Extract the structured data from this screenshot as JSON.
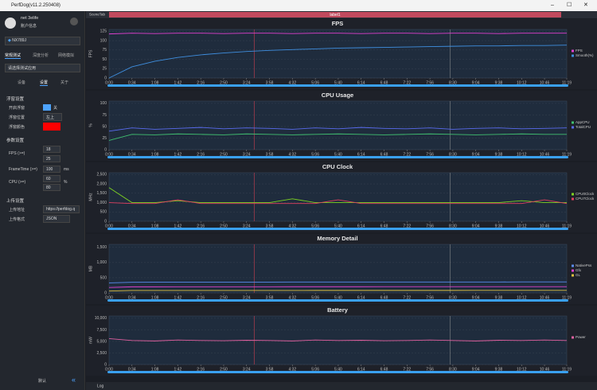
{
  "window": {
    "title": "PerfDog(v11.2.250408)",
    "scene_tab": "SceneTab",
    "label": "label1",
    "log": "Log"
  },
  "sidebar": {
    "user": "net 3elife",
    "account": "账户信息",
    "device": "NX789J",
    "tabs": [
      "常规测试",
      "深度分析",
      "网络模拟"
    ],
    "app_select": "请选择测试应用",
    "subtabs": [
      "设备",
      "设置",
      "关于"
    ],
    "float_title": "浮窗设置",
    "float_rows": [
      {
        "label": "开启浮窗",
        "value": "关"
      },
      {
        "label": "浮窗位置",
        "value": "左上"
      },
      {
        "label": "浮窗颜色"
      }
    ],
    "param_title": "参数设置",
    "params": [
      {
        "label": "FPS (>=)",
        "values": [
          18,
          25
        ]
      },
      {
        "label": "FrameTime (>=)",
        "values": [
          100
        ],
        "unit": "ms"
      },
      {
        "label": "CPU (>=)",
        "values": [
          60,
          80
        ],
        "unit": "%"
      }
    ],
    "upload_title": "上传设置",
    "upload_rows": [
      {
        "label": "上传地址",
        "value": "https://perfdog.q"
      },
      {
        "label": "上传格式",
        "value": "JSON"
      }
    ],
    "default_button": "默认"
  },
  "chart_data": [
    {
      "type": "line",
      "title": "FPS",
      "y_label": "FPS",
      "x": [
        0,
        34,
        68,
        102,
        136,
        170,
        204,
        238,
        272,
        306,
        340,
        374,
        408,
        442,
        476,
        510,
        544,
        578,
        612,
        646,
        679
      ],
      "xlim": [
        0,
        679
      ],
      "xticks": [
        {
          "value": 0,
          "label": "0:00"
        },
        {
          "value": 34,
          "label": "0:34"
        },
        {
          "value": 68,
          "label": "1:08"
        },
        {
          "value": 102,
          "label": "1:42"
        },
        {
          "value": 136,
          "label": "2:16"
        },
        {
          "value": 170,
          "label": "2:50"
        },
        {
          "value": 204,
          "label": "3:24"
        },
        {
          "value": 238,
          "label": "3:58"
        },
        {
          "value": 272,
          "label": "4:32"
        },
        {
          "value": 306,
          "label": "5:06"
        },
        {
          "value": 340,
          "label": "5:40"
        },
        {
          "value": 374,
          "label": "6:14"
        },
        {
          "value": 408,
          "label": "6:48"
        },
        {
          "value": 442,
          "label": "7:22"
        },
        {
          "value": 476,
          "label": "7:56"
        },
        {
          "value": 510,
          "label": "8:30"
        },
        {
          "value": 544,
          "label": "9:04"
        },
        {
          "value": 578,
          "label": "9:38"
        },
        {
          "value": 612,
          "label": "10:12"
        },
        {
          "value": 646,
          "label": "10:46"
        },
        {
          "value": 679,
          "label": "11:19"
        }
      ],
      "ylim": [
        0,
        130
      ],
      "yticks": [
        0,
        25,
        50,
        75,
        100,
        125
      ],
      "series": [
        {
          "name": "FPS",
          "color": "#e040d0",
          "values": [
            118,
            120,
            119,
            120,
            120,
            119,
            120,
            120,
            119,
            120,
            120,
            119,
            120,
            120,
            119,
            120,
            120,
            119,
            120,
            120,
            120
          ]
        },
        {
          "name": "Smooth(%)",
          "color": "#3f8fe0",
          "values": [
            0,
            30,
            45,
            55,
            62,
            67,
            71,
            74,
            76,
            78,
            80,
            81,
            82,
            83,
            84,
            85,
            86,
            86,
            87,
            87,
            88
          ]
        }
      ]
    },
    {
      "type": "line",
      "title": "CPU Usage",
      "y_label": "%",
      "x": [
        0,
        34,
        68,
        102,
        136,
        170,
        204,
        238,
        272,
        306,
        340,
        374,
        408,
        442,
        476,
        510,
        544,
        578,
        612,
        646,
        679
      ],
      "xlim": [
        0,
        679
      ],
      "xticks": [
        {
          "value": 0,
          "label": "0:00"
        },
        {
          "value": 34,
          "label": "0:34"
        },
        {
          "value": 68,
          "label": "1:08"
        },
        {
          "value": 102,
          "label": "1:42"
        },
        {
          "value": 136,
          "label": "2:16"
        },
        {
          "value": 170,
          "label": "2:50"
        },
        {
          "value": 204,
          "label": "3:24"
        },
        {
          "value": 238,
          "label": "3:58"
        },
        {
          "value": 272,
          "label": "4:32"
        },
        {
          "value": 306,
          "label": "5:06"
        },
        {
          "value": 340,
          "label": "5:40"
        },
        {
          "value": 374,
          "label": "6:14"
        },
        {
          "value": 408,
          "label": "6:48"
        },
        {
          "value": 442,
          "label": "7:22"
        },
        {
          "value": 476,
          "label": "7:56"
        },
        {
          "value": 510,
          "label": "8:30"
        },
        {
          "value": 544,
          "label": "9:04"
        },
        {
          "value": 578,
          "label": "9:38"
        },
        {
          "value": 612,
          "label": "10:12"
        },
        {
          "value": 646,
          "label": "10:46"
        },
        {
          "value": 679,
          "label": "11:19"
        }
      ],
      "ylim": [
        0,
        105
      ],
      "yticks": [
        0,
        25,
        50,
        75,
        100
      ],
      "series": [
        {
          "name": "AppCPU",
          "color": "#40c070",
          "values": [
            20,
            33,
            32,
            34,
            33,
            32,
            34,
            33,
            32,
            33,
            34,
            33,
            32,
            33,
            34,
            33,
            32,
            33,
            34,
            33,
            33
          ]
        },
        {
          "name": "TotalCPU",
          "color": "#5a6cf0",
          "values": [
            40,
            47,
            44,
            46,
            48,
            45,
            47,
            46,
            44,
            47,
            45,
            48,
            46,
            45,
            47,
            44,
            46,
            47,
            45,
            46,
            47
          ]
        }
      ]
    },
    {
      "type": "line",
      "title": "CPU Clock",
      "y_label": "MHz",
      "x": [
        0,
        34,
        68,
        102,
        136,
        170,
        204,
        238,
        272,
        306,
        340,
        374,
        408,
        442,
        476,
        510,
        544,
        578,
        612,
        646,
        679
      ],
      "xlim": [
        0,
        679
      ],
      "xticks": [
        {
          "value": 0,
          "label": "0:00"
        },
        {
          "value": 34,
          "label": "0:34"
        },
        {
          "value": 68,
          "label": "1:08"
        },
        {
          "value": 102,
          "label": "1:42"
        },
        {
          "value": 136,
          "label": "2:16"
        },
        {
          "value": 170,
          "label": "2:50"
        },
        {
          "value": 204,
          "label": "3:24"
        },
        {
          "value": 238,
          "label": "3:58"
        },
        {
          "value": 272,
          "label": "4:32"
        },
        {
          "value": 306,
          "label": "5:06"
        },
        {
          "value": 340,
          "label": "5:40"
        },
        {
          "value": 374,
          "label": "6:14"
        },
        {
          "value": 408,
          "label": "6:48"
        },
        {
          "value": 442,
          "label": "7:22"
        },
        {
          "value": 476,
          "label": "7:56"
        },
        {
          "value": 510,
          "label": "8:30"
        },
        {
          "value": 544,
          "label": "9:04"
        },
        {
          "value": 578,
          "label": "9:38"
        },
        {
          "value": 612,
          "label": "10:12"
        },
        {
          "value": 646,
          "label": "10:46"
        },
        {
          "value": 679,
          "label": "11:19"
        }
      ],
      "ylim": [
        0,
        2600
      ],
      "yticks": [
        0,
        500,
        {
          "value": 1000,
          "label": "1,000"
        },
        {
          "value": 1500,
          "label": "1,500"
        },
        {
          "value": 2000,
          "label": "2,000"
        },
        {
          "value": 2500,
          "label": "2,500"
        }
      ],
      "series": [
        {
          "name": "CPU0Clock",
          "color": "#7ed321",
          "values": [
            1800,
            1000,
            1000,
            1100,
            1000,
            1000,
            1000,
            1000,
            1200,
            1000,
            1000,
            1000,
            1000,
            1000,
            1000,
            1000,
            1000,
            1000,
            1100,
            1000,
            1000
          ]
        },
        {
          "name": "CPU7Clock",
          "color": "#e04060",
          "values": [
            1000,
            950,
            950,
            1150,
            950,
            950,
            950,
            950,
            950,
            950,
            1150,
            950,
            950,
            950,
            950,
            950,
            950,
            950,
            950,
            1150,
            950
          ]
        }
      ]
    },
    {
      "type": "line",
      "title": "Memory Detail",
      "y_label": "MB",
      "x": [
        0,
        34,
        68,
        102,
        136,
        170,
        204,
        238,
        272,
        306,
        340,
        374,
        408,
        442,
        476,
        510,
        544,
        578,
        612,
        646,
        679
      ],
      "xlim": [
        0,
        679
      ],
      "xticks": [
        {
          "value": 0,
          "label": "0:00"
        },
        {
          "value": 34,
          "label": "0:34"
        },
        {
          "value": 68,
          "label": "1:08"
        },
        {
          "value": 102,
          "label": "1:42"
        },
        {
          "value": 136,
          "label": "2:16"
        },
        {
          "value": 170,
          "label": "2:50"
        },
        {
          "value": 204,
          "label": "3:24"
        },
        {
          "value": 238,
          "label": "3:58"
        },
        {
          "value": 272,
          "label": "4:32"
        },
        {
          "value": 306,
          "label": "5:06"
        },
        {
          "value": 340,
          "label": "5:40"
        },
        {
          "value": 374,
          "label": "6:14"
        },
        {
          "value": 408,
          "label": "6:48"
        },
        {
          "value": 442,
          "label": "7:22"
        },
        {
          "value": 476,
          "label": "7:56"
        },
        {
          "value": 510,
          "label": "8:30"
        },
        {
          "value": 544,
          "label": "9:04"
        },
        {
          "value": 578,
          "label": "9:38"
        },
        {
          "value": 612,
          "label": "10:12"
        },
        {
          "value": 646,
          "label": "10:46"
        },
        {
          "value": 679,
          "label": "11:19"
        }
      ],
      "ylim": [
        0,
        1600
      ],
      "yticks": [
        0,
        500,
        {
          "value": 1000,
          "label": "1,000"
        },
        {
          "value": 1500,
          "label": "1,500"
        }
      ],
      "series": [
        {
          "name": "NativePss",
          "color": "#5a8cf0",
          "values": [
            330,
            350,
            352,
            355,
            356,
            356,
            357,
            357,
            358,
            358,
            358,
            359,
            359,
            359,
            360,
            360,
            360,
            360,
            361,
            361,
            361
          ]
        },
        {
          "name": "Gfx",
          "color": "#e040d0",
          "values": [
            180,
            200,
            200,
            201,
            201,
            202,
            202,
            202,
            203,
            203,
            203,
            203,
            204,
            204,
            204,
            204,
            204,
            205,
            205,
            205,
            205
          ]
        },
        {
          "name": "GL",
          "color": "#e0c040",
          "values": [
            60,
            80,
            80,
            80,
            81,
            81,
            81,
            81,
            81,
            82,
            82,
            82,
            82,
            82,
            82,
            82,
            83,
            83,
            83,
            83,
            83
          ]
        }
      ]
    },
    {
      "type": "line",
      "title": "Battery",
      "y_label": "mW",
      "x": [
        0,
        34,
        68,
        102,
        136,
        170,
        204,
        238,
        272,
        306,
        340,
        374,
        408,
        442,
        476,
        510,
        544,
        578,
        612,
        646,
        679
      ],
      "xlim": [
        0,
        679
      ],
      "xticks": [
        {
          "value": 0,
          "label": "0:00"
        },
        {
          "value": 34,
          "label": "0:34"
        },
        {
          "value": 68,
          "label": "1:08"
        },
        {
          "value": 102,
          "label": "1:42"
        },
        {
          "value": 136,
          "label": "2:16"
        },
        {
          "value": 170,
          "label": "2:50"
        },
        {
          "value": 204,
          "label": "3:24"
        },
        {
          "value": 238,
          "label": "3:58"
        },
        {
          "value": 272,
          "label": "4:32"
        },
        {
          "value": 306,
          "label": "5:06"
        },
        {
          "value": 340,
          "label": "5:40"
        },
        {
          "value": 374,
          "label": "6:14"
        },
        {
          "value": 408,
          "label": "6:48"
        },
        {
          "value": 442,
          "label": "7:22"
        },
        {
          "value": 476,
          "label": "7:56"
        },
        {
          "value": 510,
          "label": "8:30"
        },
        {
          "value": 544,
          "label": "9:04"
        },
        {
          "value": 578,
          "label": "9:38"
        },
        {
          "value": 612,
          "label": "10:12"
        },
        {
          "value": 646,
          "label": "10:46"
        },
        {
          "value": 679,
          "label": "11:19"
        }
      ],
      "ylim": [
        0,
        10500
      ],
      "yticks": [
        0,
        {
          "value": 2500,
          "label": "2,500"
        },
        {
          "value": 5000,
          "label": "5,000"
        },
        {
          "value": 7500,
          "label": "7,500"
        },
        {
          "value": 10000,
          "label": "10,000"
        }
      ],
      "series": [
        {
          "name": "Power",
          "color": "#e060a0",
          "values": [
            5600,
            5200,
            5100,
            5300,
            5200,
            5150,
            5250,
            5200,
            5100,
            5300,
            5200,
            5250,
            5150,
            5200,
            5300,
            5200,
            5100,
            5250,
            5200,
            5300,
            5200
          ]
        }
      ]
    }
  ]
}
